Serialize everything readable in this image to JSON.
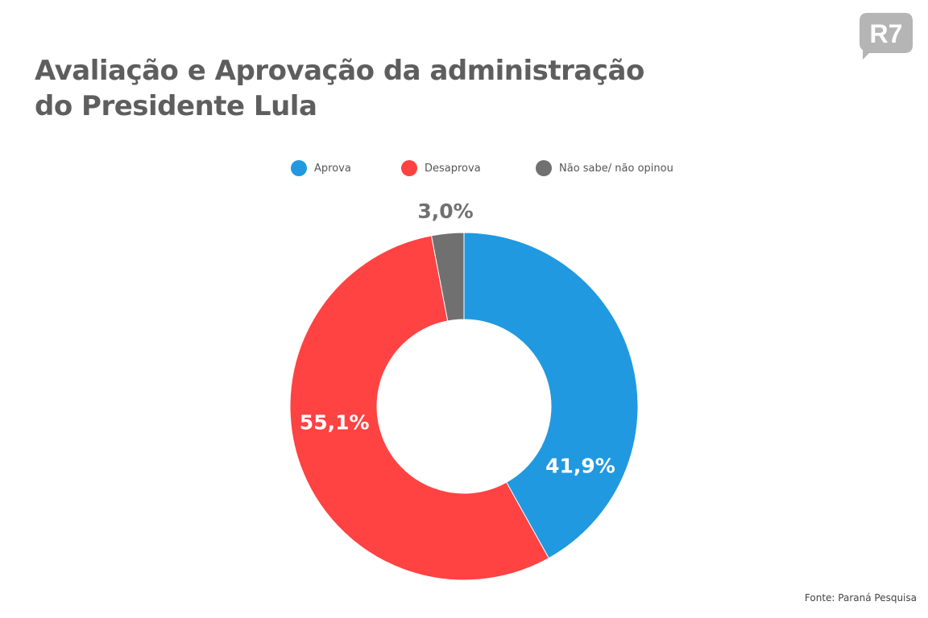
{
  "title_line1": "Avaliação e Aprovação da administração",
  "title_line2": "do Presidente Lula",
  "logo_text": "R7",
  "source": "Fonte: Paraná Pesquisa",
  "chart_data": {
    "type": "pie",
    "variant": "donut",
    "title": "Avaliação e Aprovação da administração do Presidente Lula",
    "legend_position": "top",
    "categories": [
      "Aprova",
      "Desaprova",
      "Não sabe/ não opinou"
    ],
    "values": [
      41.9,
      55.1,
      3.0
    ],
    "labels": [
      "41,9%",
      "55,1%",
      "3,0%"
    ],
    "colors": [
      "#2199e0",
      "#ff4242",
      "#707070"
    ]
  }
}
